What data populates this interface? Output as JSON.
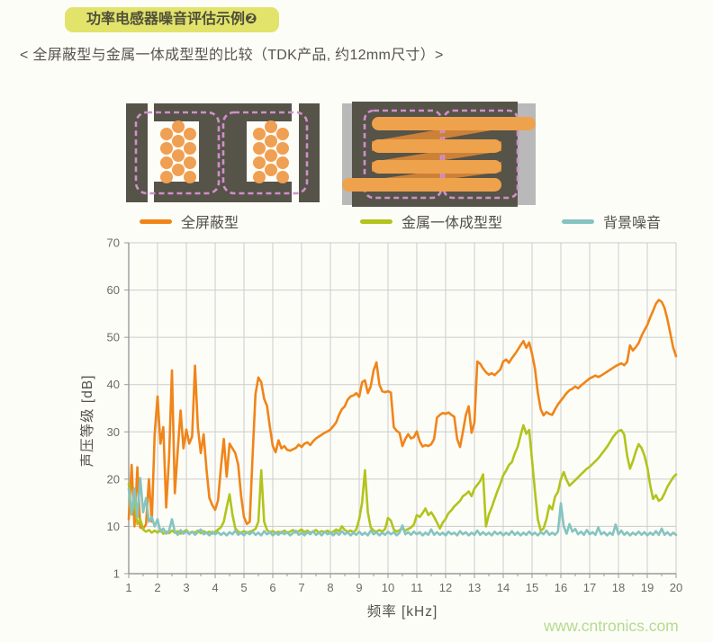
{
  "page": {
    "watermark": "www.cntronics.com"
  },
  "header": {
    "badge": "功率电感器噪音评估示例❷",
    "subtitle": "< 全屏蔽型与金属一体成型型的比较（TDK产品, 约12mm尺寸）>"
  },
  "legend": {
    "items": [
      {
        "label": "全屏蔽型",
        "color": "#f08519"
      },
      {
        "label": "金属一体成型型",
        "color": "#b2c41c"
      },
      {
        "label": "背景噪音",
        "color": "#85c4c0"
      }
    ]
  },
  "colors": {
    "grid": "#cccccc",
    "axis": "#999999",
    "tick_text": "#6b6b66",
    "badge_bg": "#e2e36b",
    "watermark_green": "#b5da90",
    "diagram_body_dark": "#565349",
    "diagram_terminal_gray": "#b9b9b9",
    "coil_orange": "#f0a053",
    "coil_diagonal_orange": "#cc8138",
    "dashed_outline_pink": "#cf90c9"
  },
  "chart_data": {
    "type": "line",
    "title": "",
    "xlabel": "频率 [kHz]",
    "ylabel": "声压等级 [dB]",
    "xlim": [
      1,
      20
    ],
    "ylim": [
      1,
      70
    ],
    "grid": true,
    "legend_position": "top",
    "x_ticks": [
      1,
      2,
      3,
      4,
      5,
      6,
      7,
      8,
      9,
      10,
      11,
      12,
      13,
      14,
      15,
      16,
      17,
      18,
      19,
      20
    ],
    "y_ticks": [
      70,
      60,
      50,
      40,
      30,
      20,
      10,
      1
    ],
    "x_start": 1.0,
    "x_step": 0.1,
    "series": [
      {
        "name": "全屏蔽型",
        "color": "#f08519",
        "values": [
          11.5,
          23,
          10,
          22.5,
          9.8,
          9.6,
          10.4,
          20,
          11,
          29.5,
          37.5,
          27.5,
          31,
          14,
          24.5,
          43,
          17,
          26,
          34.5,
          26.5,
          30.5,
          27.5,
          29,
          44,
          31,
          25.5,
          29.5,
          22,
          16,
          14.5,
          13.5,
          15.5,
          22.5,
          28.5,
          20.5,
          27.5,
          26.5,
          25.5,
          23,
          16.5,
          12,
          10.5,
          11,
          25,
          38,
          41.5,
          40.5,
          37,
          35.5,
          31,
          27,
          25.7,
          28.2,
          26.5,
          27,
          26.2,
          26,
          26.3,
          26.6,
          27.3,
          26.8,
          27.5,
          27.8,
          27.2,
          28,
          28.6,
          29,
          29.4,
          29.8,
          30.1,
          30.5,
          31.2,
          32,
          33.6,
          34.8,
          35.4,
          36.8,
          37.5,
          37.7,
          38.2,
          37.4,
          40.5,
          40.9,
          38.2,
          39.6,
          43,
          44.7,
          40,
          38.6,
          38.4,
          38.6,
          38.3,
          31,
          30.2,
          29.8,
          27,
          28.5,
          29.5,
          28.6,
          28.9,
          30.1,
          28,
          26.9,
          27.2,
          27,
          27.4,
          28.5,
          33,
          33.6,
          34,
          33.8,
          34.1,
          33.6,
          33.2,
          28.5,
          26.8,
          30,
          33.5,
          35.4,
          29.8,
          32,
          44.9,
          44.4,
          43.4,
          42.6,
          42.1,
          42.4,
          42,
          42.6,
          43.2,
          44.9,
          45.3,
          44.6,
          45.6,
          46.4,
          47.3,
          48.3,
          49.2,
          47.8,
          48.9,
          46.5,
          43.4,
          38.3,
          34.8,
          33.5,
          34.2,
          33.8,
          33.6,
          34.8,
          35.8,
          36.6,
          37.4,
          38.2,
          38.8,
          39.1,
          39.6,
          39.2,
          39.8,
          40.3,
          40.8,
          41.3,
          41.6,
          41.9,
          41.6,
          41.9,
          42.3,
          42.7,
          43.1,
          43.5,
          43.9,
          44.2,
          44.5,
          44.1,
          44.8,
          48.3,
          47.2,
          47.9,
          48.8,
          50.3,
          51.5,
          52.6,
          54.2,
          55.6,
          57.1,
          57.9,
          57.5,
          56.2,
          53.8,
          50.8,
          47.8,
          46
        ]
      },
      {
        "name": "金属一体成型型",
        "color": "#b2c41c",
        "values": [
          19,
          12.5,
          15.5,
          10.5,
          11.5,
          9.4,
          9,
          9.3,
          8.8,
          9.2,
          8.8,
          9.4,
          8.6,
          9,
          8.7,
          9.2,
          8.8,
          9.1,
          8.6,
          9,
          9.3,
          8.7,
          9,
          8.8,
          9.2,
          8.7,
          9.1,
          8.8,
          9,
          8.6,
          9,
          9.4,
          9.8,
          11,
          14,
          16.8,
          12.5,
          9.6,
          9,
          8.8,
          9.1,
          8.8,
          9,
          9.2,
          9.5,
          11,
          21.9,
          11,
          9.3,
          8.9,
          9.1,
          8.8,
          9,
          8.7,
          9.2,
          8.8,
          9,
          9.3,
          8.8,
          9.1,
          9.4,
          8.9,
          9.2,
          8.8,
          9,
          9.3,
          8.8,
          9.1,
          8.9,
          9.2,
          8.8,
          9,
          9.4,
          9.1,
          10,
          9.3,
          9,
          9.2,
          8.9,
          9.4,
          11.5,
          15,
          21.9,
          13,
          9.8,
          9.2,
          9,
          9.3,
          9,
          9.5,
          11.8,
          11.2,
          9.4,
          9,
          9.3,
          9.6,
          9.2,
          9.5,
          9.8,
          10.4,
          12.4,
          12,
          12.8,
          13.8,
          12.4,
          13,
          12,
          10.8,
          9.6,
          10.8,
          11.6,
          12.8,
          13.4,
          14.2,
          14.8,
          15.4,
          16.4,
          16.8,
          17.4,
          16.4,
          18,
          18.8,
          19.6,
          21,
          10,
          12.5,
          14,
          15.8,
          17.5,
          19,
          20.8,
          21.8,
          23,
          23.6,
          25.4,
          26.8,
          29.2,
          31.4,
          29.6,
          30.4,
          24,
          17.5,
          11.5,
          9.2,
          9.6,
          11.5,
          14.4,
          13.6,
          16.3,
          17.3,
          20,
          21.5,
          19.8,
          18.6,
          19.2,
          19.8,
          20.4,
          21,
          21.6,
          22.2,
          22.6,
          23.2,
          23.8,
          24.4,
          25.2,
          26,
          26.8,
          27.8,
          28.8,
          29.6,
          30.2,
          30.4,
          29.4,
          25,
          22.2,
          23.8,
          25.8,
          27.4,
          26.6,
          25,
          22.6,
          18.8,
          15.8,
          16.6,
          15.4,
          15.8,
          17,
          18.4,
          19.4,
          20.4,
          21
        ]
      },
      {
        "name": "背景噪音",
        "color": "#85c4c0",
        "values": [
          18,
          12.5,
          18,
          12,
          20.2,
          13,
          16,
          11,
          12,
          10,
          11.5,
          9,
          9.6,
          8.6,
          9.2,
          11.5,
          9,
          8.4,
          9.3,
          8.6,
          9.1,
          8.5,
          9,
          8.4,
          8.9,
          9.4,
          8.5,
          8.8,
          8.3,
          9,
          8.5,
          8.9,
          8.4,
          8.8,
          8.3,
          8.9,
          8.5,
          9.2,
          8.4,
          8.8,
          8.3,
          8.9,
          8.5,
          9,
          8.4,
          8.8,
          8.3,
          9.1,
          8.5,
          8.9,
          8.3,
          8.8,
          8.4,
          9,
          8.5,
          8.9,
          8.3,
          8.7,
          9.2,
          8.4,
          8.8,
          8.3,
          8.9,
          8.5,
          9.1,
          8.4,
          8.8,
          8.3,
          9,
          8.5,
          8.8,
          8.3,
          8.9,
          8.4,
          9.1,
          8.5,
          8.9,
          8.3,
          8.8,
          8.4,
          9,
          8.4,
          8.8,
          8.3,
          9.2,
          8.5,
          8.9,
          8.3,
          8.8,
          8.4,
          9,
          8.5,
          8.9,
          8.3,
          8.8,
          10.2,
          8.5,
          8.9,
          8.4,
          9,
          8.5,
          8.9,
          8.3,
          8.8,
          8.4,
          9.4,
          8.4,
          8.9,
          8.4,
          8.8,
          8.3,
          9,
          8.5,
          8.8,
          8.3,
          9.1,
          8.5,
          8.9,
          8.3,
          8.8,
          8.4,
          9.2,
          8.4,
          8.9,
          8.4,
          8.8,
          8.3,
          9,
          8.5,
          8.9,
          8.3,
          8.8,
          8.4,
          9.1,
          8.4,
          8.9,
          8.3,
          8.8,
          8.4,
          9,
          8.4,
          8.8,
          8.3,
          8.9,
          8.5,
          9.2,
          8.4,
          8.8,
          8.4,
          9,
          14.9,
          10,
          8.6,
          10.5,
          9,
          9.5,
          8.5,
          9,
          8.4,
          9.3,
          8.5,
          8.9,
          8.4,
          9.8,
          8.5,
          8.9,
          8.3,
          8.8,
          8.4,
          10.4,
          8.5,
          9.2,
          8.4,
          8.9,
          8.3,
          8.8,
          8.4,
          9,
          8.4,
          8.9,
          8.3,
          8.8,
          8.4,
          9.1,
          8.4,
          9.6,
          8.4,
          8.9,
          8.3,
          8.8,
          8.4
        ]
      }
    ]
  }
}
